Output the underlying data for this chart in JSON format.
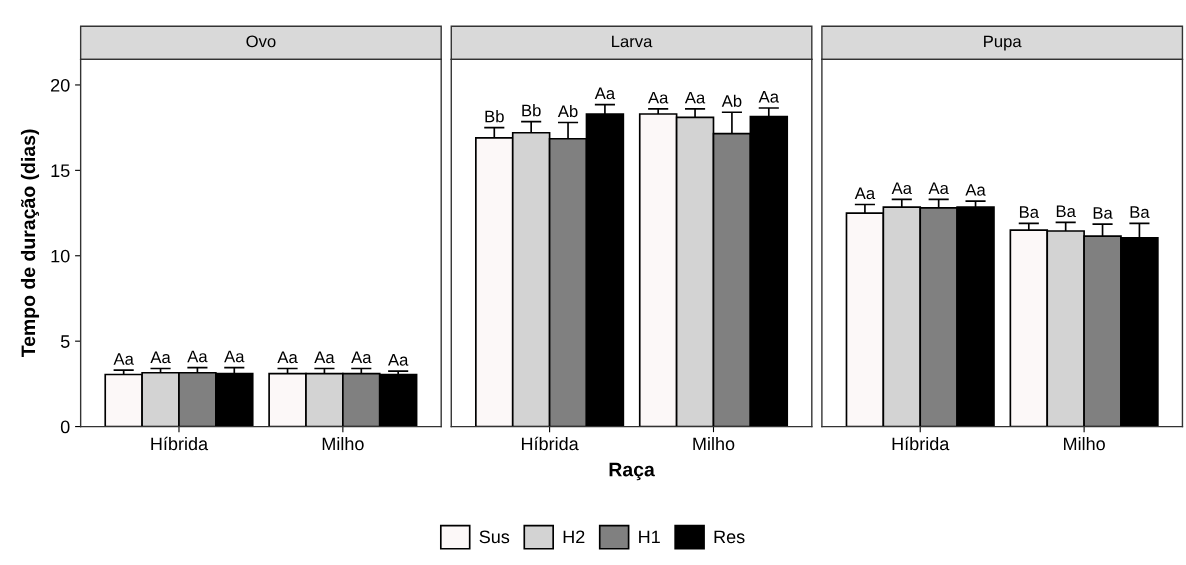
{
  "chart_data": [
    {
      "type": "bar",
      "title": "Ovo",
      "ylabel": "Tempo de duração (dias)",
      "categories": [
        "Híbrida",
        "Milho"
      ],
      "ylim": [
        0,
        21.5
      ],
      "yticks": [
        0,
        5,
        10,
        15,
        20
      ],
      "grid": false,
      "legend": "bottom",
      "series": [
        {
          "name": "Sus",
          "color": "#fcf8f8",
          "values": [
            3.05,
            3.1
          ],
          "errors": [
            [
              3.05,
              3.3
            ],
            [
              3.1,
              3.4
            ]
          ],
          "value_labels": [
            "Aa",
            "Aa"
          ]
        },
        {
          "name": "H2",
          "color": "#d3d3d3",
          "values": [
            3.15,
            3.1
          ],
          "errors": [
            [
              3.15,
              3.4
            ],
            [
              3.1,
              3.4
            ]
          ],
          "value_labels": [
            "Aa",
            "Aa"
          ]
        },
        {
          "name": "H1",
          "color": "#808080",
          "values": [
            3.15,
            3.1
          ],
          "errors": [
            [
              3.15,
              3.45
            ],
            [
              3.1,
              3.4
            ]
          ],
          "value_labels": [
            "Aa",
            "Aa"
          ]
        },
        {
          "name": "Res",
          "color": "#000000",
          "values": [
            3.1,
            3.05
          ],
          "errors": [
            [
              3.1,
              3.45
            ],
            [
              3.05,
              3.25
            ]
          ],
          "value_labels": [
            "Aa",
            "Aa"
          ]
        }
      ]
    },
    {
      "type": "bar",
      "title": "Larva",
      "xlabel": "Raça",
      "categories": [
        "Híbrida",
        "Milho"
      ],
      "ylim": [
        0,
        21.5
      ],
      "yticks": [
        0,
        5,
        10,
        15,
        20
      ],
      "tick_labels": "x",
      "grid": false,
      "series": [
        {
          "name": "Sus",
          "color": "#fcf8f8",
          "values": [
            16.9,
            18.3
          ],
          "errors": [
            [
              16.9,
              17.5
            ],
            [
              18.3,
              18.6
            ]
          ],
          "value_labels": [
            "Bb",
            "Aa"
          ]
        },
        {
          "name": "H2",
          "color": "#d3d3d3",
          "values": [
            17.2,
            18.1
          ],
          "errors": [
            [
              17.2,
              17.85
            ],
            [
              18.1,
              18.6
            ]
          ],
          "value_labels": [
            "Bb",
            "Aa"
          ]
        },
        {
          "name": "H1",
          "color": "#808080",
          "values": [
            16.85,
            17.15
          ],
          "errors": [
            [
              16.85,
              17.8
            ],
            [
              17.15,
              18.4
            ]
          ],
          "value_labels": [
            "Ab",
            "Ab"
          ]
        },
        {
          "name": "Res",
          "color": "#000000",
          "values": [
            18.3,
            18.15
          ],
          "errors": [
            [
              18.3,
              18.85
            ],
            [
              18.15,
              18.65
            ]
          ],
          "value_labels": [
            "Aa",
            "Aa"
          ]
        }
      ]
    },
    {
      "type": "bar",
      "title": "Pupa",
      "categories": [
        "Híbrida",
        "Milho"
      ],
      "ylim": [
        0,
        21.5
      ],
      "yticks": [
        0,
        5,
        10,
        15,
        20
      ],
      "tick_labels": "x",
      "grid": false,
      "series": [
        {
          "name": "Sus",
          "color": "#fcf8f8",
          "values": [
            12.5,
            11.5
          ],
          "errors": [
            [
              12.5,
              13.0
            ],
            [
              11.5,
              11.9
            ]
          ],
          "value_labels": [
            "Aa",
            "Ba"
          ]
        },
        {
          "name": "H2",
          "color": "#d3d3d3",
          "values": [
            12.85,
            11.45
          ],
          "errors": [
            [
              12.85,
              13.3
            ],
            [
              11.45,
              11.95
            ]
          ],
          "value_labels": [
            "Aa",
            "Ba"
          ]
        },
        {
          "name": "H1",
          "color": "#808080",
          "values": [
            12.8,
            11.15
          ],
          "errors": [
            [
              12.8,
              13.3
            ],
            [
              11.15,
              11.85
            ]
          ],
          "value_labels": [
            "Aa",
            "Ba"
          ]
        },
        {
          "name": "Res",
          "color": "#000000",
          "values": [
            12.85,
            11.05
          ],
          "errors": [
            [
              12.85,
              13.2
            ],
            [
              11.05,
              11.9
            ]
          ],
          "value_labels": [
            "Aa",
            "Ba"
          ]
        }
      ]
    }
  ]
}
